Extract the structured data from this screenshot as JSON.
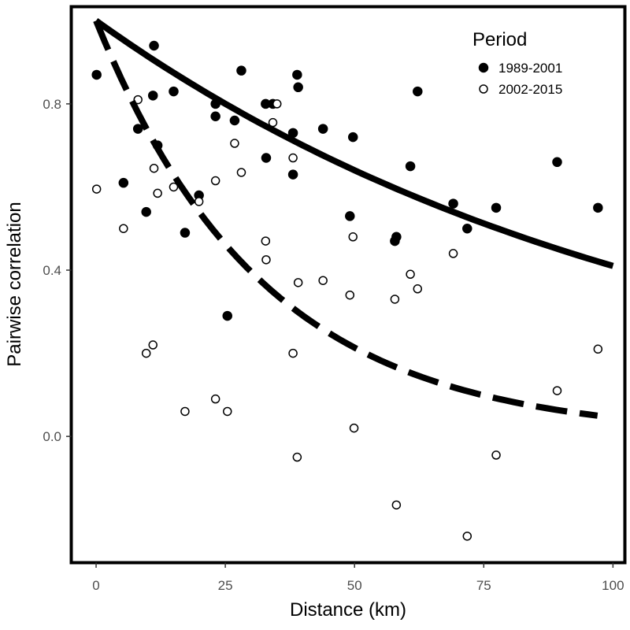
{
  "chart_data": {
    "type": "scatter",
    "xlabel": "Distance (km)",
    "ylabel": "Pairwise correlation",
    "xlim": [
      -4.5,
      102
    ],
    "ylim": [
      -0.3,
      1.03
    ],
    "x_ticks": [
      0,
      25,
      50,
      75,
      100
    ],
    "x_tick_labels": [
      "0",
      "25",
      "50",
      "75",
      "100"
    ],
    "y_ticks": [
      0.0,
      0.4,
      0.8
    ],
    "y_tick_labels": [
      "0.0",
      "0.4",
      "0.8"
    ],
    "grid": false,
    "legend": {
      "title": "Period",
      "placement": "top-right",
      "entries": [
        "1989-2001",
        "2002-2015"
      ]
    },
    "series": [
      {
        "name": "1989-2001",
        "marker": "filled-circle",
        "points": [
          {
            "x": 0.1,
            "y": 0.87
          },
          {
            "x": 5.3,
            "y": 0.61
          },
          {
            "x": 8.1,
            "y": 0.74
          },
          {
            "x": 9.7,
            "y": 0.54
          },
          {
            "x": 11.0,
            "y": 0.82
          },
          {
            "x": 11.2,
            "y": 0.94
          },
          {
            "x": 11.9,
            "y": 0.7
          },
          {
            "x": 15.0,
            "y": 0.83
          },
          {
            "x": 17.2,
            "y": 0.49
          },
          {
            "x": 19.9,
            "y": 0.58
          },
          {
            "x": 23.1,
            "y": 0.8
          },
          {
            "x": 23.1,
            "y": 0.77
          },
          {
            "x": 25.4,
            "y": 0.29
          },
          {
            "x": 26.8,
            "y": 0.76
          },
          {
            "x": 28.1,
            "y": 0.88
          },
          {
            "x": 32.8,
            "y": 0.8
          },
          {
            "x": 32.9,
            "y": 0.67
          },
          {
            "x": 34.2,
            "y": 0.8
          },
          {
            "x": 38.1,
            "y": 0.73
          },
          {
            "x": 38.1,
            "y": 0.63
          },
          {
            "x": 38.9,
            "y": 0.87
          },
          {
            "x": 39.1,
            "y": 0.84
          },
          {
            "x": 43.9,
            "y": 0.74
          },
          {
            "x": 49.1,
            "y": 0.53
          },
          {
            "x": 49.7,
            "y": 0.72
          },
          {
            "x": 57.8,
            "y": 0.47
          },
          {
            "x": 58.1,
            "y": 0.48
          },
          {
            "x": 60.8,
            "y": 0.65
          },
          {
            "x": 62.2,
            "y": 0.83
          },
          {
            "x": 69.1,
            "y": 0.56
          },
          {
            "x": 71.8,
            "y": 0.5
          },
          {
            "x": 77.4,
            "y": 0.55
          },
          {
            "x": 89.2,
            "y": 0.66
          },
          {
            "x": 97.1,
            "y": 0.55
          }
        ],
        "fit": {
          "type": "exponential",
          "line_style": "solid",
          "x": [
            0,
            100
          ],
          "y0": 1.0,
          "y_at_100": 0.41
        }
      },
      {
        "name": "2002-2015",
        "marker": "open-circle",
        "points": [
          {
            "x": 0.1,
            "y": 0.595
          },
          {
            "x": 5.3,
            "y": 0.5
          },
          {
            "x": 8.1,
            "y": 0.81
          },
          {
            "x": 9.7,
            "y": 0.2
          },
          {
            "x": 11.0,
            "y": 0.22
          },
          {
            "x": 11.2,
            "y": 0.645
          },
          {
            "x": 11.9,
            "y": 0.585
          },
          {
            "x": 15.0,
            "y": 0.6
          },
          {
            "x": 17.2,
            "y": 0.06
          },
          {
            "x": 19.9,
            "y": 0.565
          },
          {
            "x": 23.1,
            "y": 0.615
          },
          {
            "x": 23.1,
            "y": 0.09
          },
          {
            "x": 25.4,
            "y": 0.06
          },
          {
            "x": 26.8,
            "y": 0.705
          },
          {
            "x": 28.1,
            "y": 0.635
          },
          {
            "x": 32.8,
            "y": 0.47
          },
          {
            "x": 32.9,
            "y": 0.425
          },
          {
            "x": 34.2,
            "y": 0.755
          },
          {
            "x": 35.0,
            "y": 0.8
          },
          {
            "x": 38.1,
            "y": 0.67
          },
          {
            "x": 38.1,
            "y": 0.2
          },
          {
            "x": 38.9,
            "y": -0.05
          },
          {
            "x": 39.1,
            "y": 0.37
          },
          {
            "x": 43.9,
            "y": 0.375
          },
          {
            "x": 49.1,
            "y": 0.34
          },
          {
            "x": 49.7,
            "y": 0.48
          },
          {
            "x": 49.9,
            "y": 0.02
          },
          {
            "x": 57.8,
            "y": 0.33
          },
          {
            "x": 58.1,
            "y": -0.165
          },
          {
            "x": 60.8,
            "y": 0.39
          },
          {
            "x": 62.2,
            "y": 0.355
          },
          {
            "x": 69.1,
            "y": 0.44
          },
          {
            "x": 71.8,
            "y": -0.24
          },
          {
            "x": 77.4,
            "y": -0.045
          },
          {
            "x": 89.2,
            "y": 0.11
          },
          {
            "x": 97.1,
            "y": 0.21
          }
        ],
        "fit": {
          "type": "exponential",
          "line_style": "dashed",
          "x": [
            0,
            97
          ],
          "y0": 1.0,
          "y_at_97": 0.05
        }
      }
    ]
  }
}
